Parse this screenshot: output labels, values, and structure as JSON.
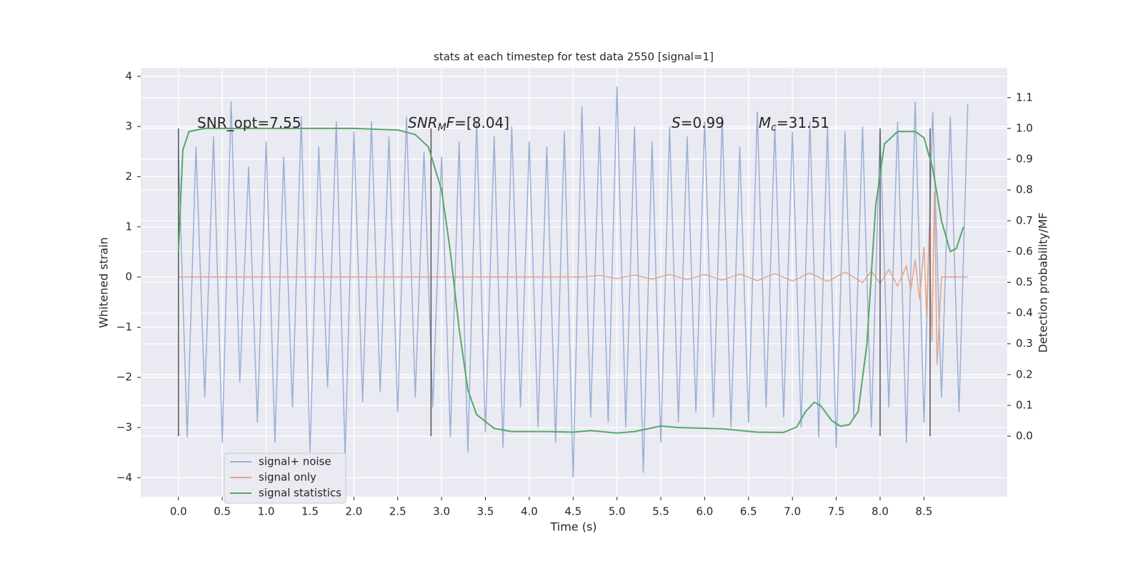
{
  "chart_data": {
    "type": "line",
    "title": "stats at each timestep for test data 2550 [signal=1]",
    "xlabel": "Time (s)",
    "ylabel": "Whitened strain",
    "y2label": "Detection probability/MF",
    "xlim": [
      -0.43,
      9.45
    ],
    "ylim": [
      -4.38,
      4.17
    ],
    "y2lim": [
      -0.197,
      1.197
    ],
    "xticks": [
      {
        "value": 0,
        "label": "0.0"
      },
      0.5,
      {
        "value": 1,
        "label": "1.0"
      },
      1.5,
      {
        "value": 2,
        "label": "2.0"
      },
      2.5,
      {
        "value": 3,
        "label": "3.0"
      },
      3.5,
      {
        "value": 4,
        "label": "4.0"
      },
      4.5,
      {
        "value": 5,
        "label": "5.0"
      },
      5.5,
      {
        "value": 6,
        "label": "6.0"
      },
      6.5,
      {
        "value": 7,
        "label": "7.0"
      },
      7.5,
      {
        "value": 8,
        "label": "8.0"
      },
      8.5
    ],
    "yticks": [
      {
        "value": -4,
        "label": "−4"
      },
      {
        "value": -3,
        "label": "−3"
      },
      {
        "value": -2,
        "label": "−2"
      },
      {
        "value": -1,
        "label": "−1"
      },
      0,
      1,
      2,
      3,
      4
    ],
    "y2ticks": [
      {
        "value": 0,
        "label": "0.0"
      },
      0.1,
      0.2,
      0.3,
      0.4,
      0.5,
      0.6,
      0.7,
      0.8,
      0.9,
      {
        "value": 1,
        "label": "1.0"
      },
      1.1
    ],
    "grid": true,
    "legend": "lower left",
    "series": [
      {
        "name": "signal+ noise",
        "color": "#9aafd4",
        "x": [
          0,
          0.1,
          0.2,
          0.3,
          0.4,
          0.5,
          0.6,
          0.7,
          0.8,
          0.9,
          1.0,
          1.1,
          1.2,
          1.3,
          1.4,
          1.5,
          1.6,
          1.7,
          1.8,
          1.9,
          2.0,
          2.1,
          2.2,
          2.3,
          2.4,
          2.5,
          2.6,
          2.7,
          2.8,
          2.9,
          3.0,
          3.1,
          3.2,
          3.3,
          3.4,
          3.5,
          3.6,
          3.7,
          3.8,
          3.9,
          4.0,
          4.1,
          4.2,
          4.3,
          4.4,
          4.5,
          4.6,
          4.7,
          4.8,
          4.9,
          5.0,
          5.1,
          5.2,
          5.3,
          5.4,
          5.5,
          5.6,
          5.7,
          5.8,
          5.9,
          6.0,
          6.1,
          6.2,
          6.3,
          6.4,
          6.5,
          6.6,
          6.7,
          6.8,
          6.9,
          7.0,
          7.1,
          7.2,
          7.3,
          7.4,
          7.5,
          7.6,
          7.7,
          7.8,
          7.9,
          8.0,
          8.1,
          8.2,
          8.3,
          8.4,
          8.5,
          8.6,
          8.7,
          8.8,
          8.9,
          9.0
        ],
        "values": [
          2.5,
          -3.2,
          2.6,
          -2.4,
          2.8,
          -3.3,
          3.5,
          -2.1,
          2.2,
          -2.9,
          2.7,
          -3.3,
          2.4,
          -2.6,
          3.2,
          -3.5,
          2.6,
          -2.2,
          3.1,
          -3.6,
          2.9,
          -2.5,
          3.1,
          -2.3,
          2.8,
          -2.7,
          3.2,
          -2.4,
          2.5,
          -2.6,
          2.4,
          -3.2,
          2.7,
          -3.5,
          3.1,
          -3.1,
          2.8,
          -3.4,
          3.0,
          -2.6,
          2.7,
          -3.0,
          2.6,
          -3.3,
          2.9,
          -4.0,
          3.4,
          -2.8,
          3.0,
          -2.9,
          3.8,
          -3.0,
          3.0,
          -3.9,
          2.7,
          -3.3,
          3.0,
          -2.9,
          2.8,
          -2.7,
          3.1,
          -2.8,
          3.2,
          -3.0,
          2.6,
          -2.9,
          3.3,
          -2.6,
          3.0,
          -2.8,
          2.9,
          -3.0,
          3.1,
          -3.2,
          3.0,
          -3.4,
          2.9,
          -2.8,
          3.0,
          -3.0,
          2.9,
          -2.6,
          3.1,
          -3.3,
          3.5,
          -2.9,
          3.3,
          -2.4,
          3.2,
          -2.7,
          3.45
        ]
      },
      {
        "name": "signal only",
        "color": "#e3a58a",
        "x": [
          0,
          4.6,
          4.8,
          5.0,
          5.2,
          5.4,
          5.6,
          5.8,
          6.0,
          6.2,
          6.4,
          6.6,
          6.8,
          7.0,
          7.2,
          7.4,
          7.6,
          7.8,
          7.9,
          8.0,
          8.1,
          8.2,
          8.3,
          8.35,
          8.4,
          8.45,
          8.5,
          8.53,
          8.56,
          8.59,
          8.62,
          8.65,
          8.7,
          9.0
        ],
        "values": [
          0,
          0,
          0.03,
          -0.03,
          0.04,
          -0.04,
          0.05,
          -0.05,
          0.05,
          -0.06,
          0.06,
          -0.07,
          0.07,
          -0.08,
          0.08,
          -0.09,
          0.1,
          -0.11,
          0.12,
          -0.13,
          0.15,
          -0.18,
          0.22,
          -0.27,
          0.35,
          -0.45,
          0.6,
          -0.8,
          1.0,
          -1.3,
          1.7,
          -1.75,
          0,
          0
        ]
      },
      {
        "name": "signal statistics",
        "color": "#55a868",
        "axis": "y2",
        "x": [
          0,
          0.05,
          0.12,
          0.3,
          1.0,
          2.0,
          2.5,
          2.7,
          2.85,
          3.0,
          3.1,
          3.2,
          3.3,
          3.4,
          3.6,
          3.8,
          4.2,
          4.5,
          4.7,
          5.0,
          5.2,
          5.5,
          5.7,
          6.2,
          6.6,
          6.9,
          7.05,
          7.15,
          7.25,
          7.32,
          7.45,
          7.55,
          7.65,
          7.75,
          7.85,
          7.95,
          8.05,
          8.2,
          8.4,
          8.5,
          8.6,
          8.7,
          8.8,
          8.87,
          8.95
        ],
        "values": [
          0.6,
          0.93,
          0.99,
          1.0,
          1.0,
          1.0,
          0.995,
          0.98,
          0.94,
          0.8,
          0.6,
          0.35,
          0.15,
          0.07,
          0.025,
          0.015,
          0.015,
          0.013,
          0.018,
          0.01,
          0.015,
          0.033,
          0.028,
          0.024,
          0.013,
          0.012,
          0.03,
          0.08,
          0.11,
          0.1,
          0.05,
          0.032,
          0.038,
          0.08,
          0.3,
          0.75,
          0.95,
          0.99,
          0.99,
          0.97,
          0.87,
          0.7,
          0.6,
          0.61,
          0.68
        ]
      }
    ],
    "vlines": {
      "x": [
        0,
        2.88,
        8.0,
        8.57
      ],
      "ymin": 0,
      "ymax": 1,
      "axis": "y2",
      "color": "#555555"
    },
    "annotations": [
      {
        "parts": [
          {
            "text": "SNR_opt=7.55"
          }
        ]
      },
      {
        "parts": [
          {
            "text": "SNR",
            "style": "italic"
          },
          {
            "text": "M",
            "style": "sub"
          },
          {
            "text": "F",
            "style": "italic"
          },
          {
            "text": "=[8.04]"
          }
        ]
      },
      {
        "parts": [
          {
            "text": "S",
            "style": "italic"
          },
          {
            "text": "=0.99"
          }
        ]
      },
      {
        "parts": [
          {
            "text": "M",
            "style": "italic"
          },
          {
            "text": "c",
            "style": "sub"
          },
          {
            "text": "=31.51"
          }
        ]
      }
    ]
  }
}
